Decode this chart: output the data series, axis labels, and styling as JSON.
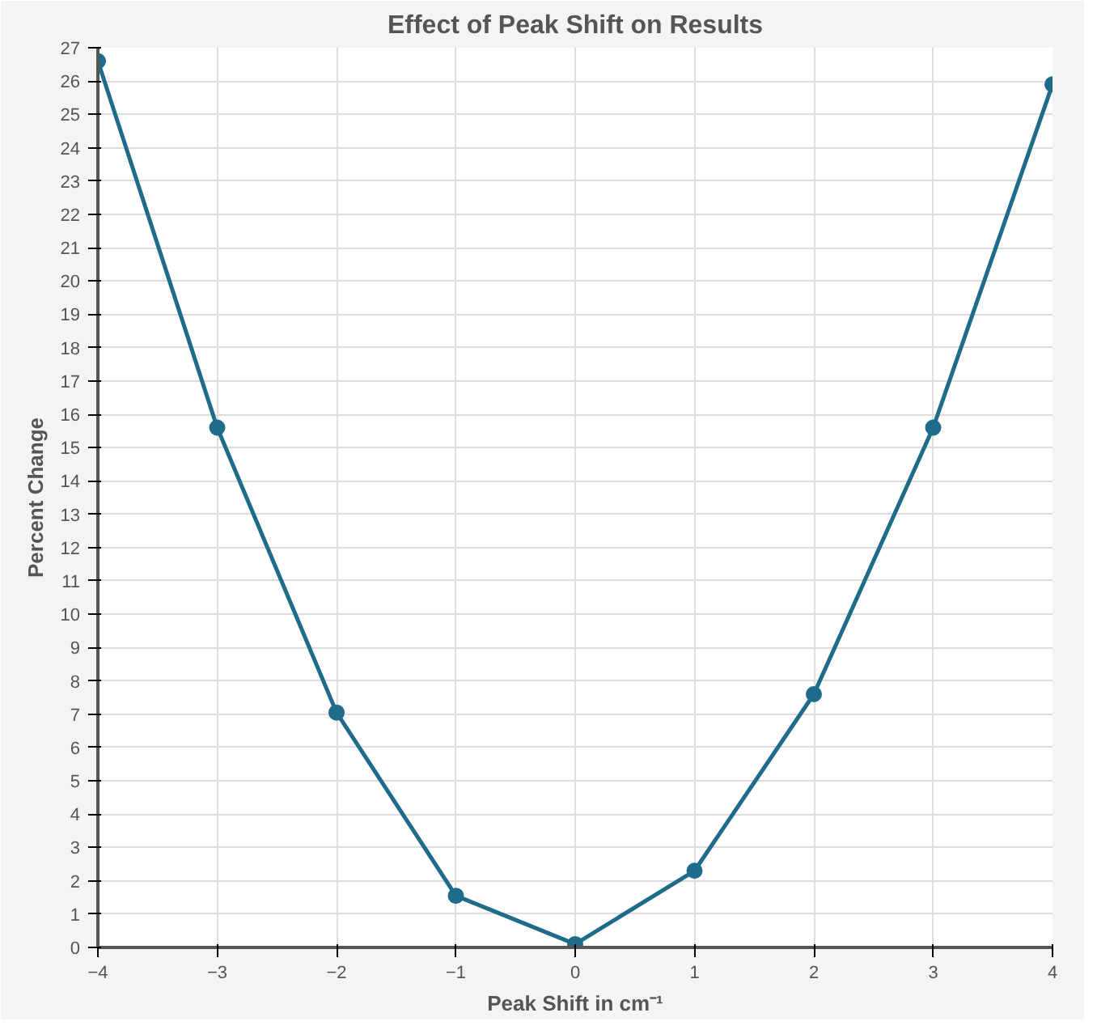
{
  "chart_data": {
    "type": "line",
    "title": "Effect of Peak Shift on Results",
    "xlabel": "Peak Shift in cm⁻¹",
    "ylabel": "Percent Change",
    "x": [
      -4,
      -3,
      -2,
      -1,
      0,
      1,
      2,
      3,
      4
    ],
    "series": [
      {
        "color": "#1f6b8a",
        "values": [
          26.6,
          15.6,
          7.05,
          1.55,
          0.1,
          2.3,
          7.6,
          15.6,
          25.9
        ]
      }
    ],
    "xlim": [
      -4,
      4
    ],
    "xticks": [
      -4,
      -3,
      -2,
      -1,
      0,
      1,
      2,
      3,
      4
    ],
    "ylim": [
      0,
      27
    ],
    "yticks": [
      0,
      1,
      2,
      3,
      4,
      5,
      6,
      7,
      8,
      9,
      10,
      11,
      12,
      13,
      14,
      15,
      16,
      17,
      18,
      19,
      20,
      21,
      22,
      23,
      24,
      25,
      26,
      27
    ],
    "grid": true,
    "marker": "circle",
    "line_style": "solid"
  }
}
